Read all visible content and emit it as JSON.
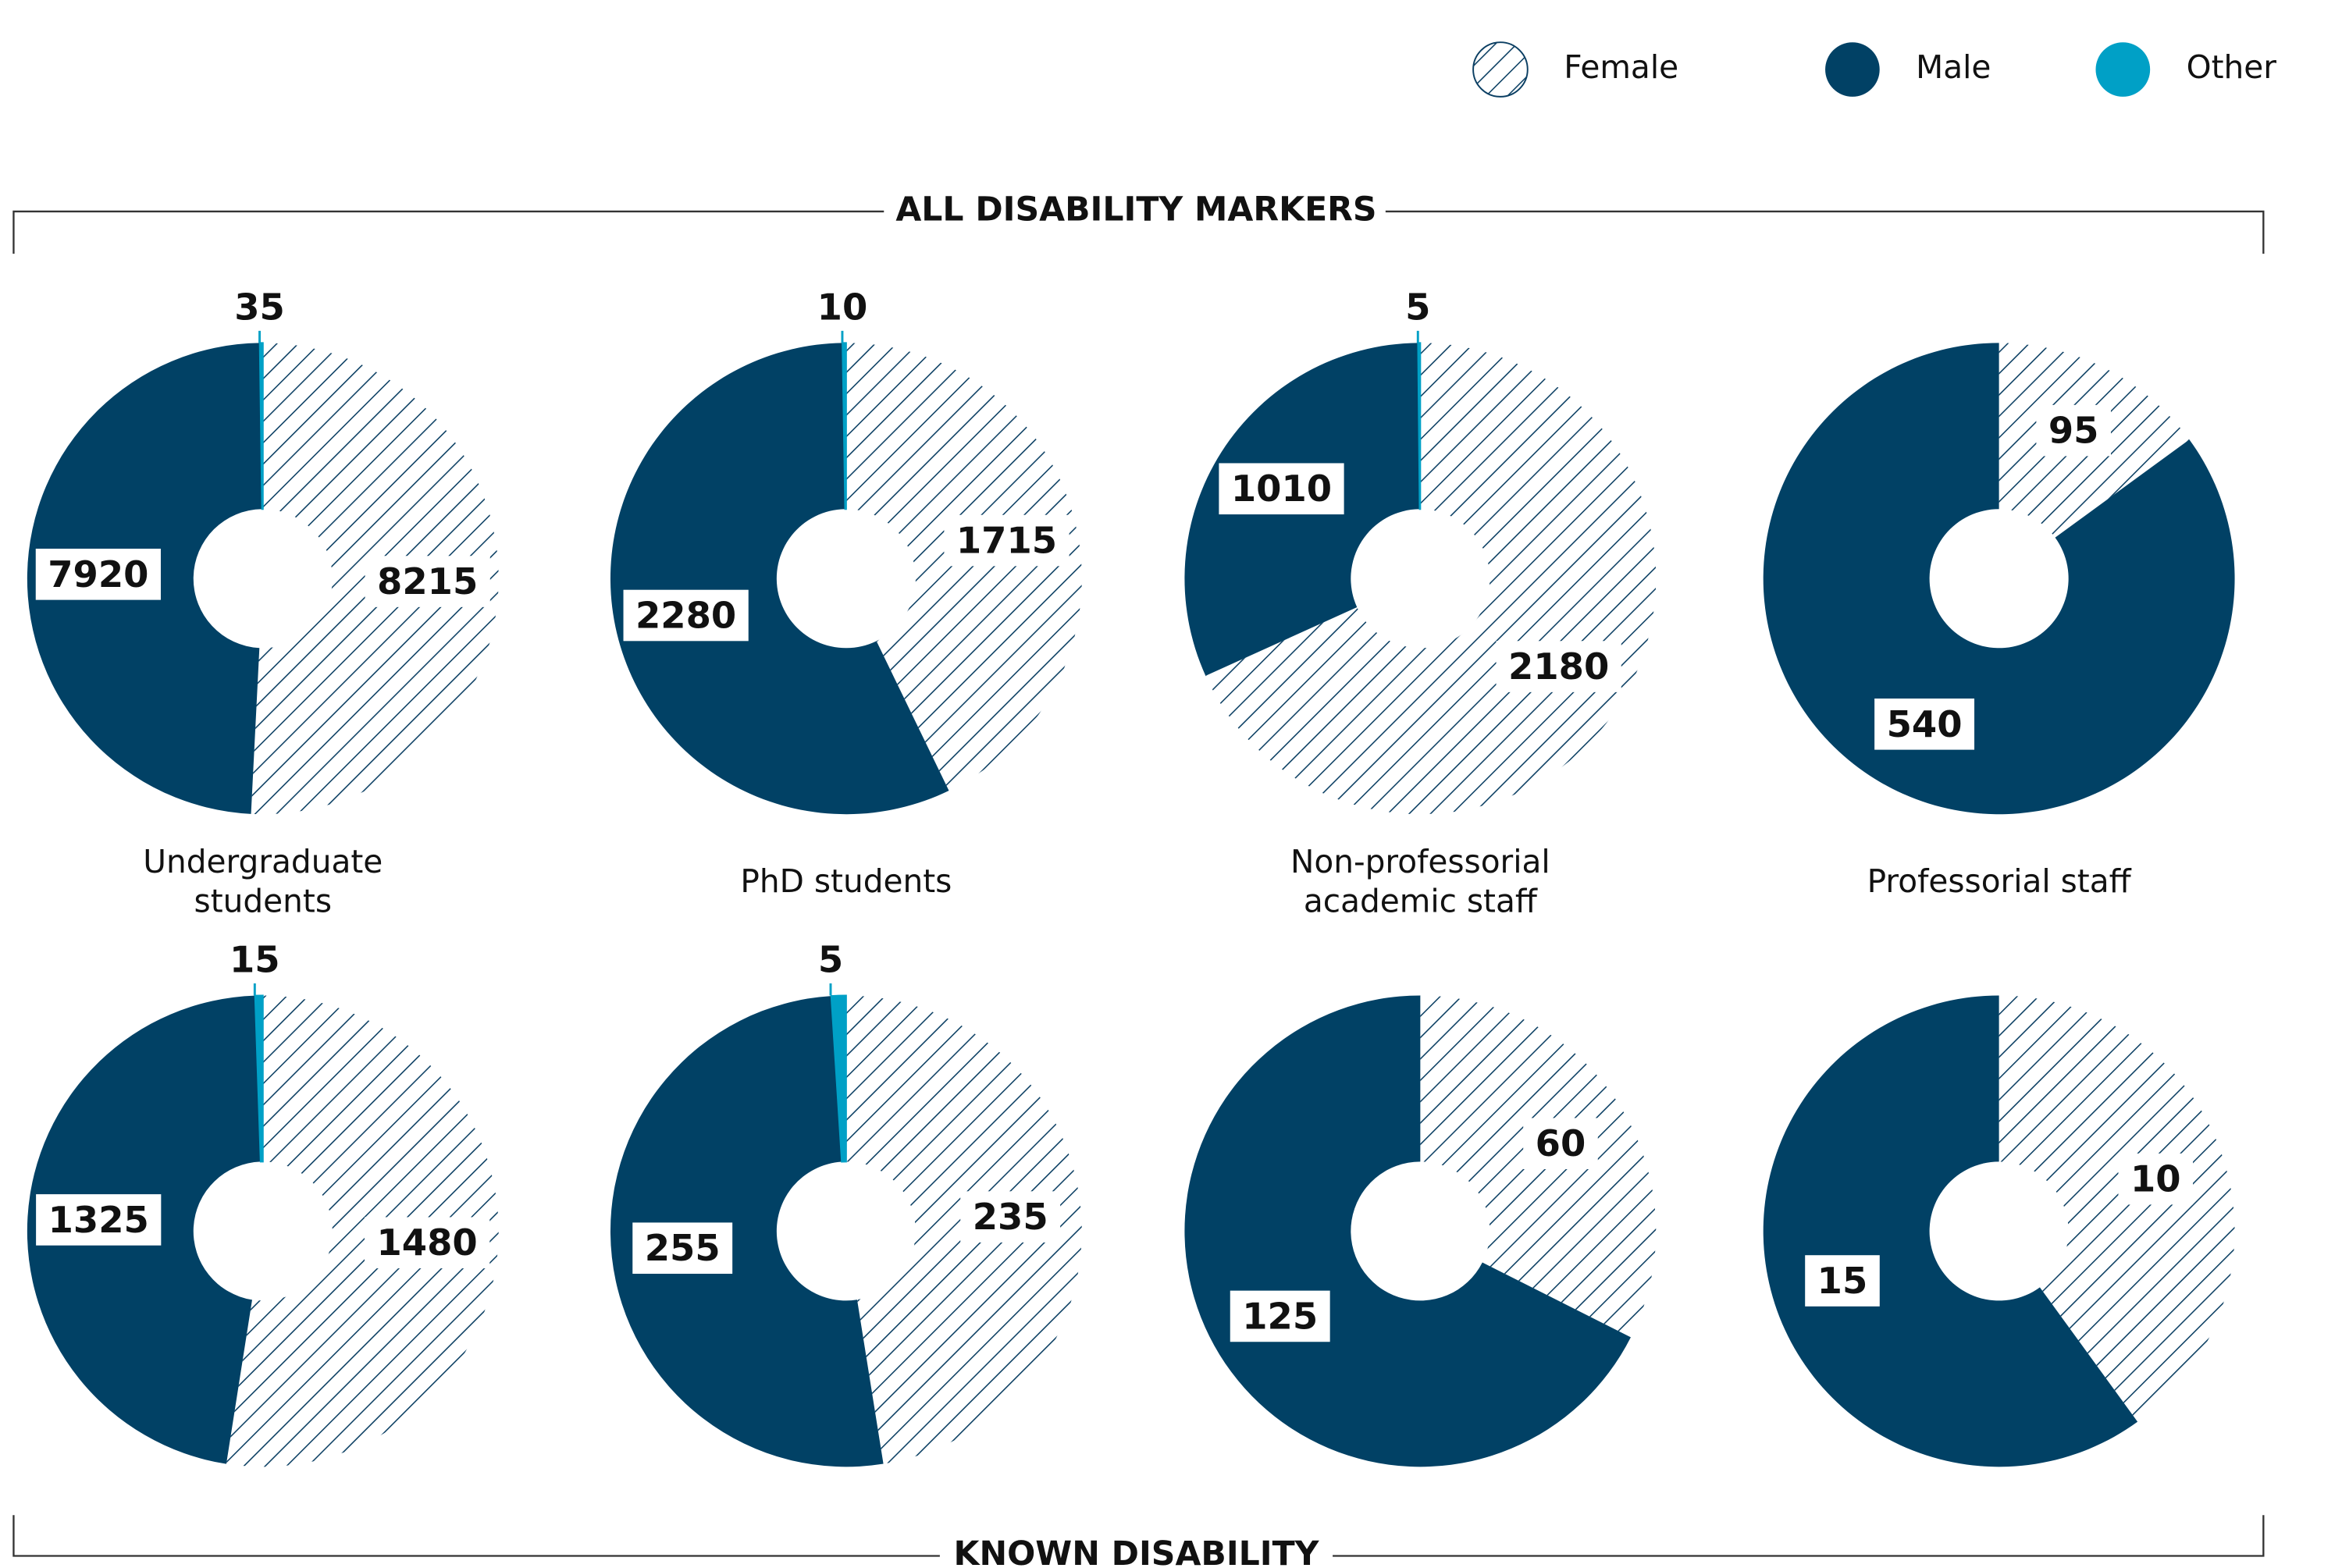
{
  "legend": {
    "labels": [
      "Female",
      "Male",
      "Other"
    ],
    "colors": [
      "#0b3f63",
      "#014165",
      "#00a0c6"
    ],
    "hatched": [
      true,
      false,
      false
    ]
  },
  "sections": [
    "ALL DISABILITY MARKERS",
    "KNOWN DISABILITY"
  ],
  "groups": [
    [
      "Undergraduate",
      "students"
    ],
    [
      "PhD students"
    ],
    [
      "Non-professorial",
      "academic staff"
    ],
    [
      "Professorial staff"
    ]
  ],
  "chart_data": [
    {
      "type": "pie",
      "values": [
        8215,
        7920,
        35
      ]
    },
    {
      "type": "pie",
      "values": [
        1715,
        2280,
        10
      ]
    },
    {
      "type": "pie",
      "values": [
        2180,
        1010,
        5
      ]
    },
    {
      "type": "pie",
      "values": [
        95,
        540
      ]
    },
    {
      "type": "pie",
      "values": [
        1480,
        1325,
        15
      ]
    },
    {
      "type": "pie",
      "values": [
        235,
        255,
        5
      ]
    },
    {
      "type": "pie",
      "values": [
        60,
        125
      ]
    },
    {
      "type": "pie",
      "values": [
        10,
        15
      ]
    }
  ]
}
